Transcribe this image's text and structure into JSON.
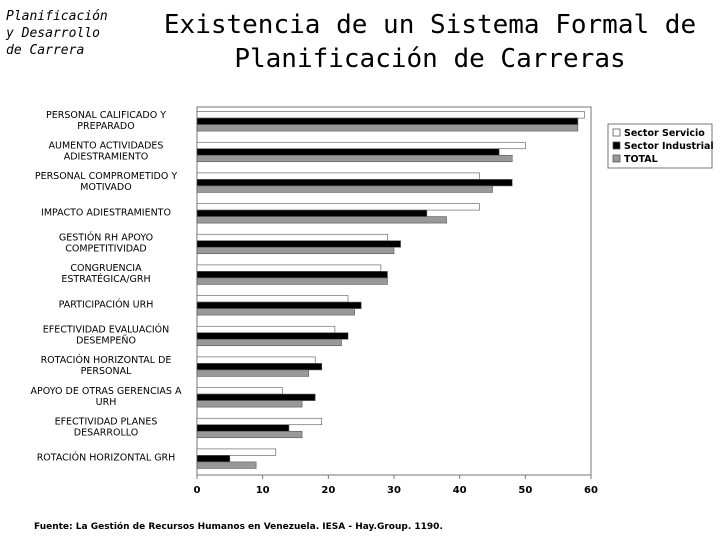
{
  "header": {
    "side_label": "Planificación\ny Desarrollo\nde Carrera",
    "title": "Existencia  de un Sistema Formal de\nPlanificación de Carreras"
  },
  "source": "Fuente: La Gestión de Recursos Humanos en Venezuela. IESA - Hay.Group. 1190.",
  "chart_data": {
    "type": "bar",
    "orientation": "horizontal",
    "categories": [
      [
        "PERSONAL CALIFICADO Y",
        "PREPARADO"
      ],
      [
        "AUMENTO ACTIVIDADES",
        "ADIESTRAMIENTO"
      ],
      [
        "PERSONAL COMPROMETIDO Y",
        "MOTIVADO"
      ],
      [
        "IMPACTO ADIESTRAMIENTO"
      ],
      [
        "GESTIÓN RH APOYO",
        "COMPETITIVIDAD"
      ],
      [
        "CONGRUENCIA",
        "ESTRATÉGICA/GRH"
      ],
      [
        "PARTICIPACIÓN URH"
      ],
      [
        "EFECTIVIDAD EVALUACIÓN",
        "DESEMPEÑO"
      ],
      [
        "ROTACIÓN HORIZONTAL DE",
        "PERSONAL"
      ],
      [
        "APOYO DE OTRAS GERENCIAS A",
        "URH"
      ],
      [
        "EFECTIVIDAD PLANES",
        "DESARROLLO"
      ],
      [
        "ROTACIÓN HORIZONTAL GRH"
      ]
    ],
    "series": [
      {
        "name": "Sector Servicio",
        "color": "#ffffff",
        "values": [
          59,
          50,
          43,
          43,
          29,
          28,
          23,
          21,
          18,
          13,
          19,
          12
        ]
      },
      {
        "name": "Sector Industrial",
        "color": "#000000",
        "values": [
          58,
          46,
          48,
          35,
          31,
          29,
          25,
          23,
          19,
          18,
          14,
          5
        ]
      },
      {
        "name": "TOTAL",
        "color": "#999999",
        "values": [
          58,
          48,
          45,
          38,
          30,
          29,
          24,
          22,
          17,
          16,
          16,
          9
        ]
      }
    ],
    "xlim": [
      0,
      60
    ],
    "xticks": [
      0,
      10,
      20,
      30,
      40,
      50,
      60
    ],
    "legend": "top-right",
    "grid": false
  }
}
